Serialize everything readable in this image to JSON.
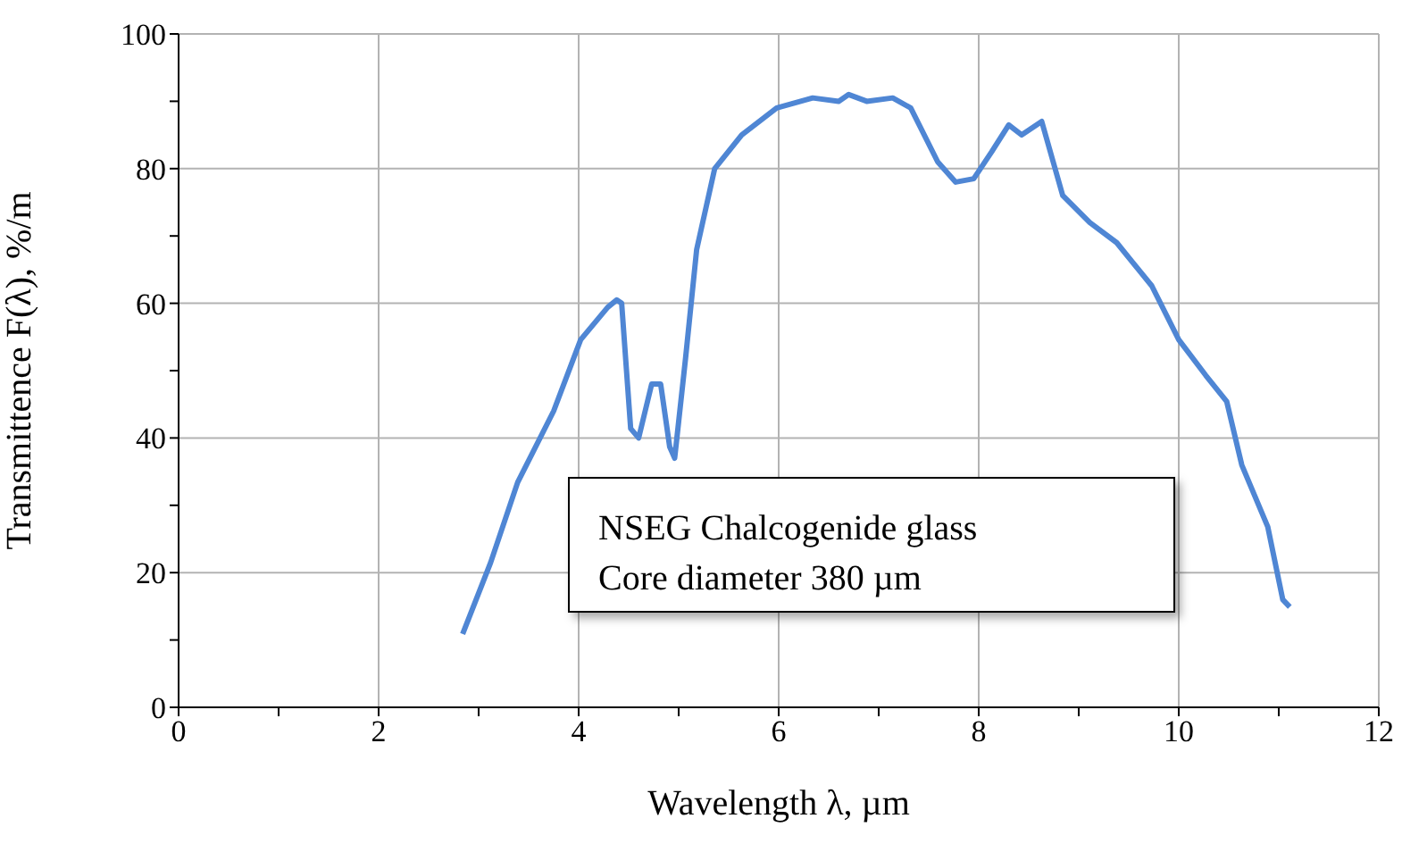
{
  "chart_data": {
    "type": "line",
    "xlabel": "Wavelength λ, µm",
    "ylabel": "Transmittence F(λ), %/m",
    "annotations": [
      "NSEG Chalcogenide glass",
      "Core diameter 380 µm"
    ],
    "xlim": [
      0,
      12
    ],
    "ylim": [
      0,
      100
    ],
    "xticks": [
      0,
      {
        "value": 1,
        "label": null
      },
      2,
      {
        "value": 3,
        "label": null
      },
      4,
      {
        "value": 5,
        "label": null
      },
      6,
      {
        "value": 7,
        "label": null
      },
      8,
      {
        "value": 9,
        "label": null
      },
      10,
      {
        "value": 11,
        "label": null
      },
      12
    ],
    "yticks": [
      0,
      {
        "value": 10,
        "label": null
      },
      20,
      {
        "value": 30,
        "label": null
      },
      40,
      {
        "value": 50,
        "label": null
      },
      60,
      {
        "value": 70,
        "label": null
      },
      80,
      {
        "value": 90,
        "label": null
      },
      100
    ],
    "grid": true,
    "marker": "none",
    "line_style": "solid",
    "series": [
      {
        "color": "#4f86d4",
        "x": [
          2.84,
          3.12,
          3.39,
          3.75,
          4.02,
          4.29,
          4.38,
          4.43,
          4.52,
          4.6,
          4.73,
          4.82,
          4.91,
          4.96,
          5.07,
          5.18,
          5.36,
          5.63,
          5.98,
          6.34,
          6.6,
          6.7,
          6.88,
          7.14,
          7.32,
          7.59,
          7.77,
          7.95,
          8.13,
          8.3,
          8.43,
          8.63,
          8.84,
          9.11,
          9.38,
          9.73,
          10,
          10.27,
          10.48,
          10.63,
          10.89,
          11.04,
          11.11
        ],
        "values": [
          10.9,
          21.5,
          33.4,
          44,
          54.6,
          59.4,
          60.5,
          60,
          41.4,
          40,
          48,
          48,
          38.7,
          37,
          52,
          68,
          80,
          85,
          89,
          90.5,
          90,
          91,
          90,
          90.5,
          89,
          81,
          78,
          78.5,
          82.5,
          86.5,
          85,
          87,
          76,
          72,
          69,
          62.6,
          54.6,
          49.3,
          45.4,
          36,
          26.8,
          16,
          14.9
        ]
      }
    ]
  }
}
